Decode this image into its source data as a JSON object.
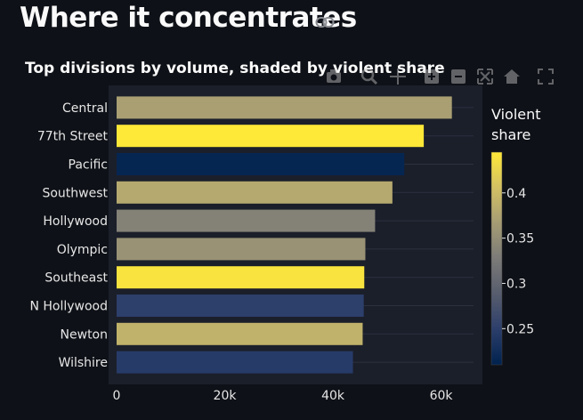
{
  "page": {
    "title": "Where it concentrates",
    "link_icon": "link-icon"
  },
  "modebar": {
    "icons": [
      "camera-icon",
      "zoom-icon",
      "pan-icon",
      "zoom-in-icon",
      "zoom-out-icon",
      "autoscale-icon",
      "home-icon",
      "fullscreen-icon"
    ]
  },
  "chart_data": {
    "type": "bar",
    "orientation": "horizontal",
    "title": "Top divisions by volume, shaded by violent share",
    "categories": [
      "Central",
      "77th Street",
      "Pacific",
      "Southwest",
      "Hollywood",
      "Olympic",
      "Southeast",
      "N Hollywood",
      "Newton",
      "Wilshire"
    ],
    "values": [
      62000,
      56800,
      53200,
      51000,
      47800,
      46000,
      45800,
      45700,
      45500,
      43700
    ],
    "violent_share": [
      0.37,
      0.445,
      0.215,
      0.38,
      0.335,
      0.355,
      0.44,
      0.25,
      0.39,
      0.245
    ],
    "xlim": [
      0,
      66000
    ],
    "xticks": [
      0,
      20000,
      40000,
      60000
    ],
    "xtick_labels": [
      "0",
      "20k",
      "40k",
      "60k"
    ],
    "xlabel": "",
    "ylabel": "",
    "grid": true,
    "colorbar": {
      "title_line1": "Violent",
      "title_line2": "share",
      "min": 0.21,
      "max": 0.445,
      "ticks": [
        0.25,
        0.3,
        0.35,
        0.4
      ],
      "tick_labels": [
        "0.25",
        "0.3",
        "0.35",
        "0.4"
      ],
      "colorscale": [
        "#00224e",
        "#2c3e6b",
        "#575d6d",
        "#7c7b78",
        "#a59c74",
        "#d3c164",
        "#fee838"
      ]
    }
  }
}
